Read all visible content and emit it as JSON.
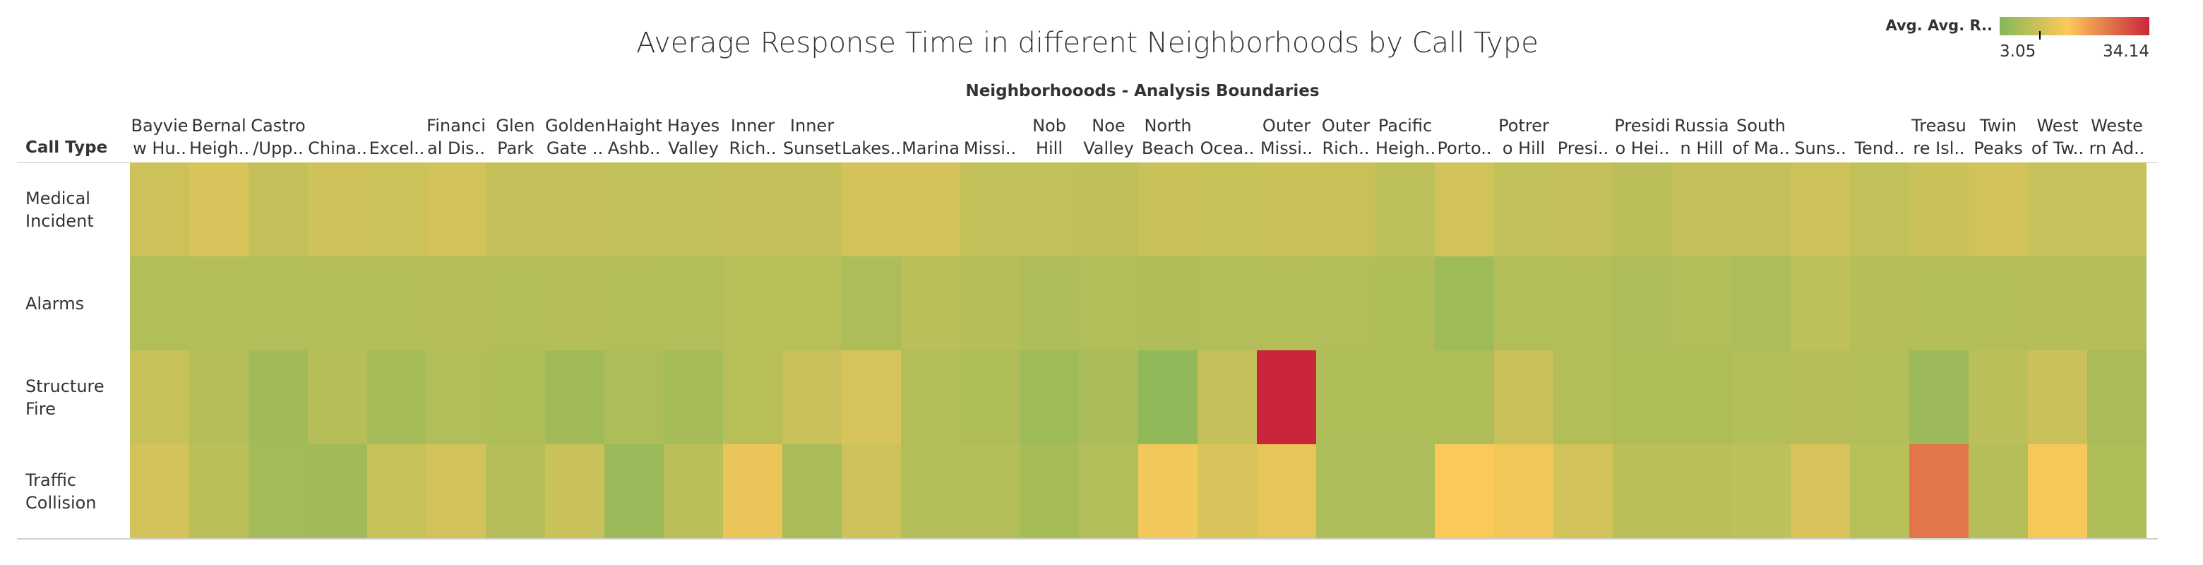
{
  "chart_data": {
    "type": "heatmap",
    "title": "Average Response Time in different Neighborhoods by Call Type",
    "xlabel": "Neighborhooods - Analysis Boundaries",
    "row_header": "Call Type",
    "legend": {
      "title": "Avg. Avg. R..",
      "min": 3.05,
      "max": 34.14,
      "min_label": "3.05",
      "max_label": "34.14",
      "placement": "top-right",
      "colors": [
        "#86b759",
        "#fcc95a",
        "#c9263b"
      ]
    },
    "columns": [
      "Bayvie\nw Hu..",
      "Bernal\nHeigh..",
      "Castro\n/Upp..",
      "China..",
      "Excel..",
      "Financi\nal Dis..",
      "Glen\nPark",
      "Golden\nGate ..",
      "Haight\nAshb..",
      "Hayes\nValley",
      "Inner\nRich..",
      "Inner\nSunset",
      "Lakes..",
      "Marina",
      "Missi..",
      "Nob\nHill",
      "Noe\nValley",
      "North\nBeach",
      "Ocea..",
      "Outer\nMissi..",
      "Outer\nRich..",
      "Pacific\nHeigh..",
      "Porto..",
      "Potrer\no Hill",
      "Presi..",
      "Presidi\no Hei..",
      "Russia\nn Hill",
      "South\nof Ma..",
      "Suns..",
      "Tend..",
      "Treasu\nre Isl..",
      "Twin\nPeaks",
      "West\nof Tw..",
      "Weste\nrn Ad.."
    ],
    "rows": [
      "Medical\nIncident",
      "Alarms",
      "Structure\nFire",
      "Traffic\nCollision"
    ],
    "values": [
      [
        11.5,
        12.8,
        10.3,
        11.7,
        11.3,
        11.9,
        10.3,
        10.3,
        10.0,
        10.0,
        10.3,
        10.3,
        12.3,
        12.3,
        10.0,
        10.0,
        9.8,
        11.0,
        10.7,
        11.0,
        10.9,
        9.6,
        11.9,
        10.0,
        10.3,
        9.4,
        10.3,
        10.3,
        11.5,
        10.0,
        11.0,
        11.9,
        10.6,
        10.6
      ],
      [
        8.2,
        8.5,
        8.2,
        8.5,
        8.5,
        8.8,
        8.5,
        8.7,
        8.5,
        8.2,
        8.9,
        8.9,
        7.7,
        9.2,
        8.7,
        7.8,
        8.2,
        8.0,
        8.3,
        8.4,
        8.2,
        7.9,
        5.8,
        8.2,
        8.4,
        7.8,
        8.2,
        7.5,
        9.7,
        8.7,
        8.5,
        8.4,
        8.7,
        8.7
      ],
      [
        10.8,
        8.8,
        6.4,
        8.8,
        6.9,
        8.2,
        7.9,
        6.2,
        7.6,
        6.9,
        9.0,
        11.0,
        12.5,
        8.2,
        7.9,
        5.8,
        7.3,
        4.3,
        10.4,
        34.1,
        7.9,
        7.9,
        7.9,
        10.9,
        8.5,
        7.9,
        7.9,
        8.2,
        8.8,
        8.2,
        5.6,
        9.3,
        11.2,
        7.3
      ],
      [
        12.2,
        9.3,
        6.5,
        6.2,
        10.8,
        12.0,
        8.8,
        11.0,
        5.5,
        9.4,
        14.9,
        7.3,
        11.5,
        8.5,
        8.5,
        6.8,
        8.3,
        16.0,
        12.8,
        14.4,
        7.6,
        7.6,
        16.9,
        15.8,
        11.9,
        9.5,
        9.5,
        9.7,
        12.6,
        9.1,
        25.9,
        8.8,
        16.3,
        7.9
      ]
    ]
  }
}
